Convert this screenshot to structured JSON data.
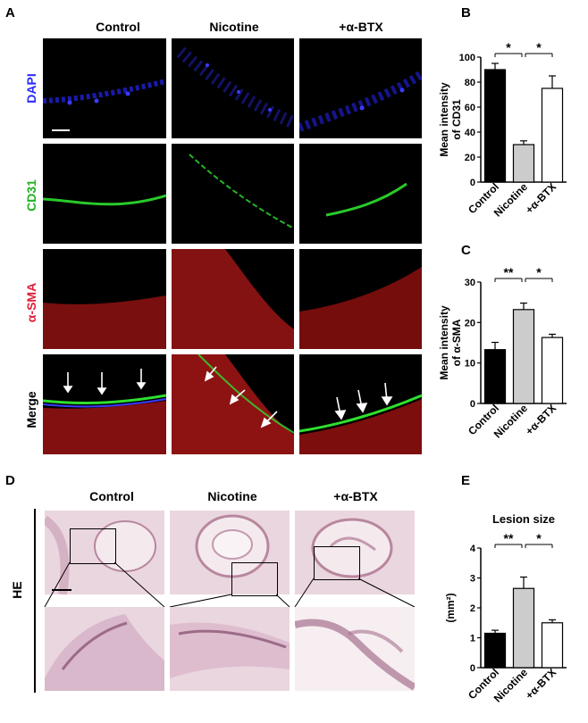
{
  "panels": {
    "A": "A",
    "B": "B",
    "C": "C",
    "D": "D",
    "E": "E"
  },
  "panel_a": {
    "columns": [
      "Control",
      "Nicotine",
      "+α-BTX"
    ],
    "rows": [
      "DAPI",
      "CD31",
      "α-SMA",
      "Merge"
    ],
    "row_colors": {
      "DAPI": "#2a2aff",
      "CD31": "#1db31d",
      "α-SMA": "#e0203a",
      "Merge": "#000000"
    }
  },
  "panel_d": {
    "columns": [
      "Control",
      "Nicotine",
      "+α-BTX"
    ],
    "row_label": "HE",
    "stain_color": "#e4c8d5"
  },
  "chart_data": [
    {
      "id": "B",
      "type": "bar",
      "categories": [
        "Control",
        "Nicotine",
        "+α-BTX"
      ],
      "values": [
        90,
        30,
        75
      ],
      "errors": [
        5,
        3,
        10
      ],
      "colors": [
        "#000000",
        "#cccccc",
        "#ffffff"
      ],
      "ylabel": "Mean intensity\nof CD31",
      "ylim": [
        0,
        100
      ],
      "yticks": [
        0,
        20,
        40,
        60,
        80,
        100
      ],
      "significance": [
        {
          "from": 0,
          "to": 1,
          "label": "*"
        },
        {
          "from": 1,
          "to": 2,
          "label": "*"
        }
      ]
    },
    {
      "id": "C",
      "type": "bar",
      "categories": [
        "Control",
        "Nicotine",
        "+α-BTX"
      ],
      "values": [
        13.3,
        23.2,
        16.3
      ],
      "errors": [
        1.8,
        1.6,
        0.8
      ],
      "colors": [
        "#000000",
        "#cccccc",
        "#ffffff"
      ],
      "ylabel": "Mean intensity\nof α-SMA",
      "ylim": [
        0,
        30
      ],
      "yticks": [
        0,
        10,
        20,
        30
      ],
      "significance": [
        {
          "from": 0,
          "to": 1,
          "label": "**"
        },
        {
          "from": 1,
          "to": 2,
          "label": "*"
        }
      ]
    },
    {
      "id": "E",
      "type": "bar",
      "title": "Lesion size",
      "categories": [
        "Control",
        "Nicotine",
        "+α-BTX"
      ],
      "values": [
        1.15,
        2.65,
        1.5
      ],
      "errors": [
        0.1,
        0.38,
        0.1
      ],
      "colors": [
        "#000000",
        "#cccccc",
        "#ffffff"
      ],
      "ylabel": "(mm²)",
      "ylim": [
        0,
        4
      ],
      "yticks": [
        0,
        1,
        2,
        3,
        4
      ],
      "significance": [
        {
          "from": 0,
          "to": 1,
          "label": "**"
        },
        {
          "from": 1,
          "to": 2,
          "label": "*"
        }
      ]
    }
  ]
}
